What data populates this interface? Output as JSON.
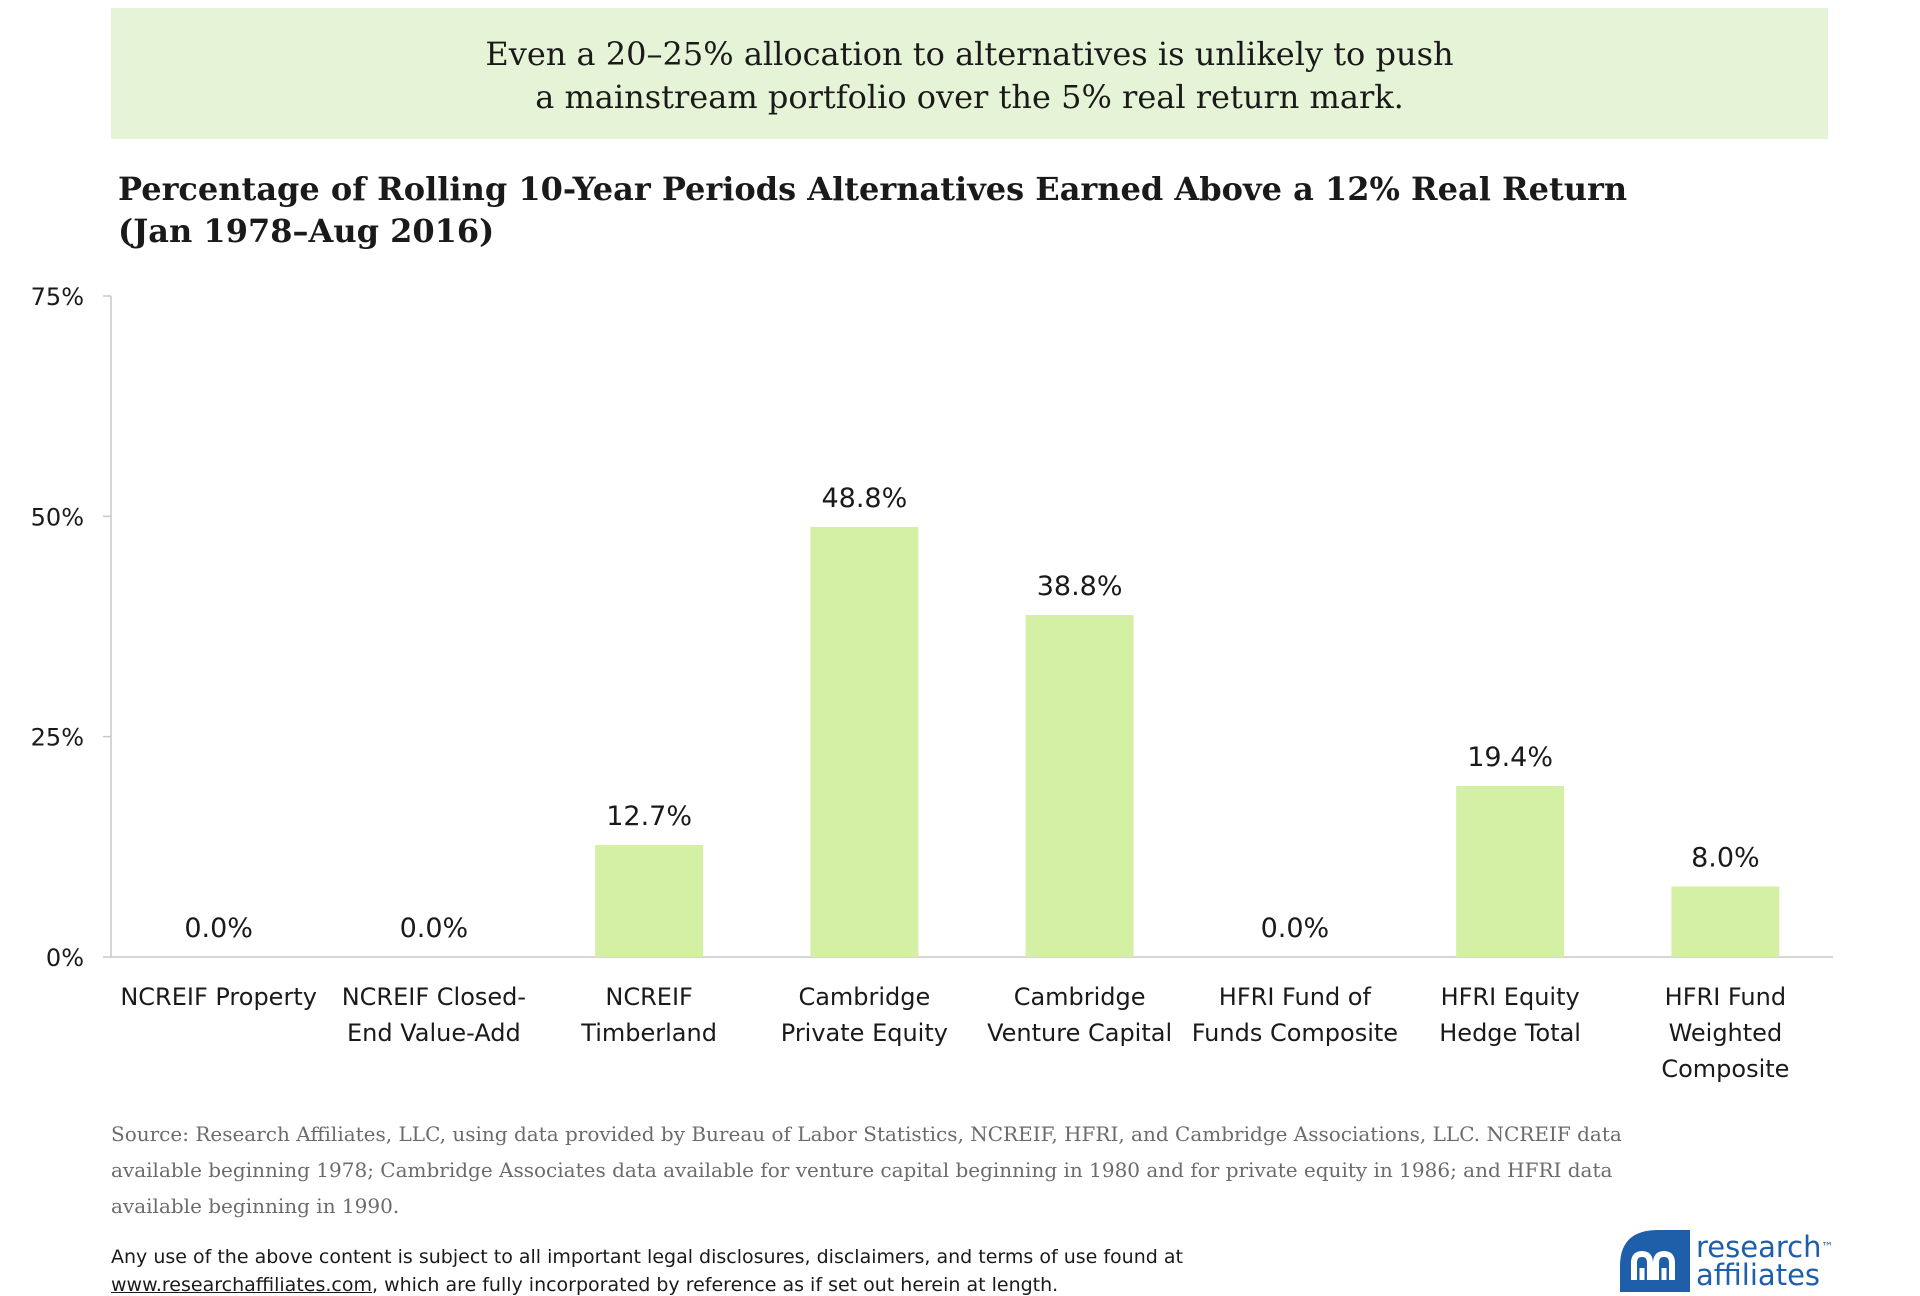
{
  "banner": {
    "line1": "Even a 20–25% allocation to alternatives is unlikely to push",
    "line2": "a mainstream portfolio over the 5% real return mark."
  },
  "chart_title": {
    "line1": "Percentage of Rolling 10-Year Periods Alternatives Earned Above a 12% Real Return",
    "line2": "(Jan 1978–Aug 2016)"
  },
  "chart_data": {
    "type": "bar",
    "title": "Percentage of Rolling 10-Year Periods Alternatives Earned Above a 12% Real Return (Jan 1978–Aug 2016)",
    "categories": [
      [
        "NCREIF Property"
      ],
      [
        "NCREIF Closed-",
        "End Value-Add"
      ],
      [
        "NCREIF",
        "Timberland"
      ],
      [
        "Cambridge",
        "Private Equity"
      ],
      [
        "Cambridge",
        "Venture Capital"
      ],
      [
        "HFRI Fund of",
        "Funds Composite"
      ],
      [
        "HFRI Equity",
        "Hedge Total"
      ],
      [
        "HFRI Fund",
        "Weighted",
        "Composite"
      ]
    ],
    "values": [
      0.0,
      0.0,
      12.7,
      48.8,
      38.8,
      0.0,
      19.4,
      8.0
    ],
    "data_labels": [
      "0.0%",
      "0.0%",
      "12.7%",
      "48.8%",
      "38.8%",
      "0.0%",
      "19.4%",
      "8.0%"
    ],
    "ylim": [
      0,
      75
    ],
    "yticks": [
      0,
      25,
      50,
      75
    ],
    "ytick_labels": [
      "0%",
      "25%",
      "50%",
      "75%"
    ],
    "xlabel": "",
    "ylabel": "",
    "grid": false,
    "bar_color": "#d4f0a4",
    "axis_color": "#c8c8c8"
  },
  "source_note": {
    "line1": "Source: Research Affiliates, LLC, using data provided by Bureau of Labor Statistics, NCREIF, HFRI, and Cambridge Associations, LLC. NCREIF data",
    "line2": "available beginning 1978; Cambridge Associates data available for venture capital beginning in 1980 and for private equity in 1986; and HFRI data",
    "line3": "available beginning in 1990."
  },
  "disclaimer": {
    "line1": "Any use of the above content is subject to all important legal disclosures, disclaimers, and terms of use found at",
    "link": "www.researchaffiliates.com",
    "line2_rest": ", which are fully incorporated by reference as if set out herein at length."
  },
  "logo": {
    "word1": "research",
    "tm": "™",
    "word2": "affiliates",
    "color": "#1f5ea8"
  }
}
